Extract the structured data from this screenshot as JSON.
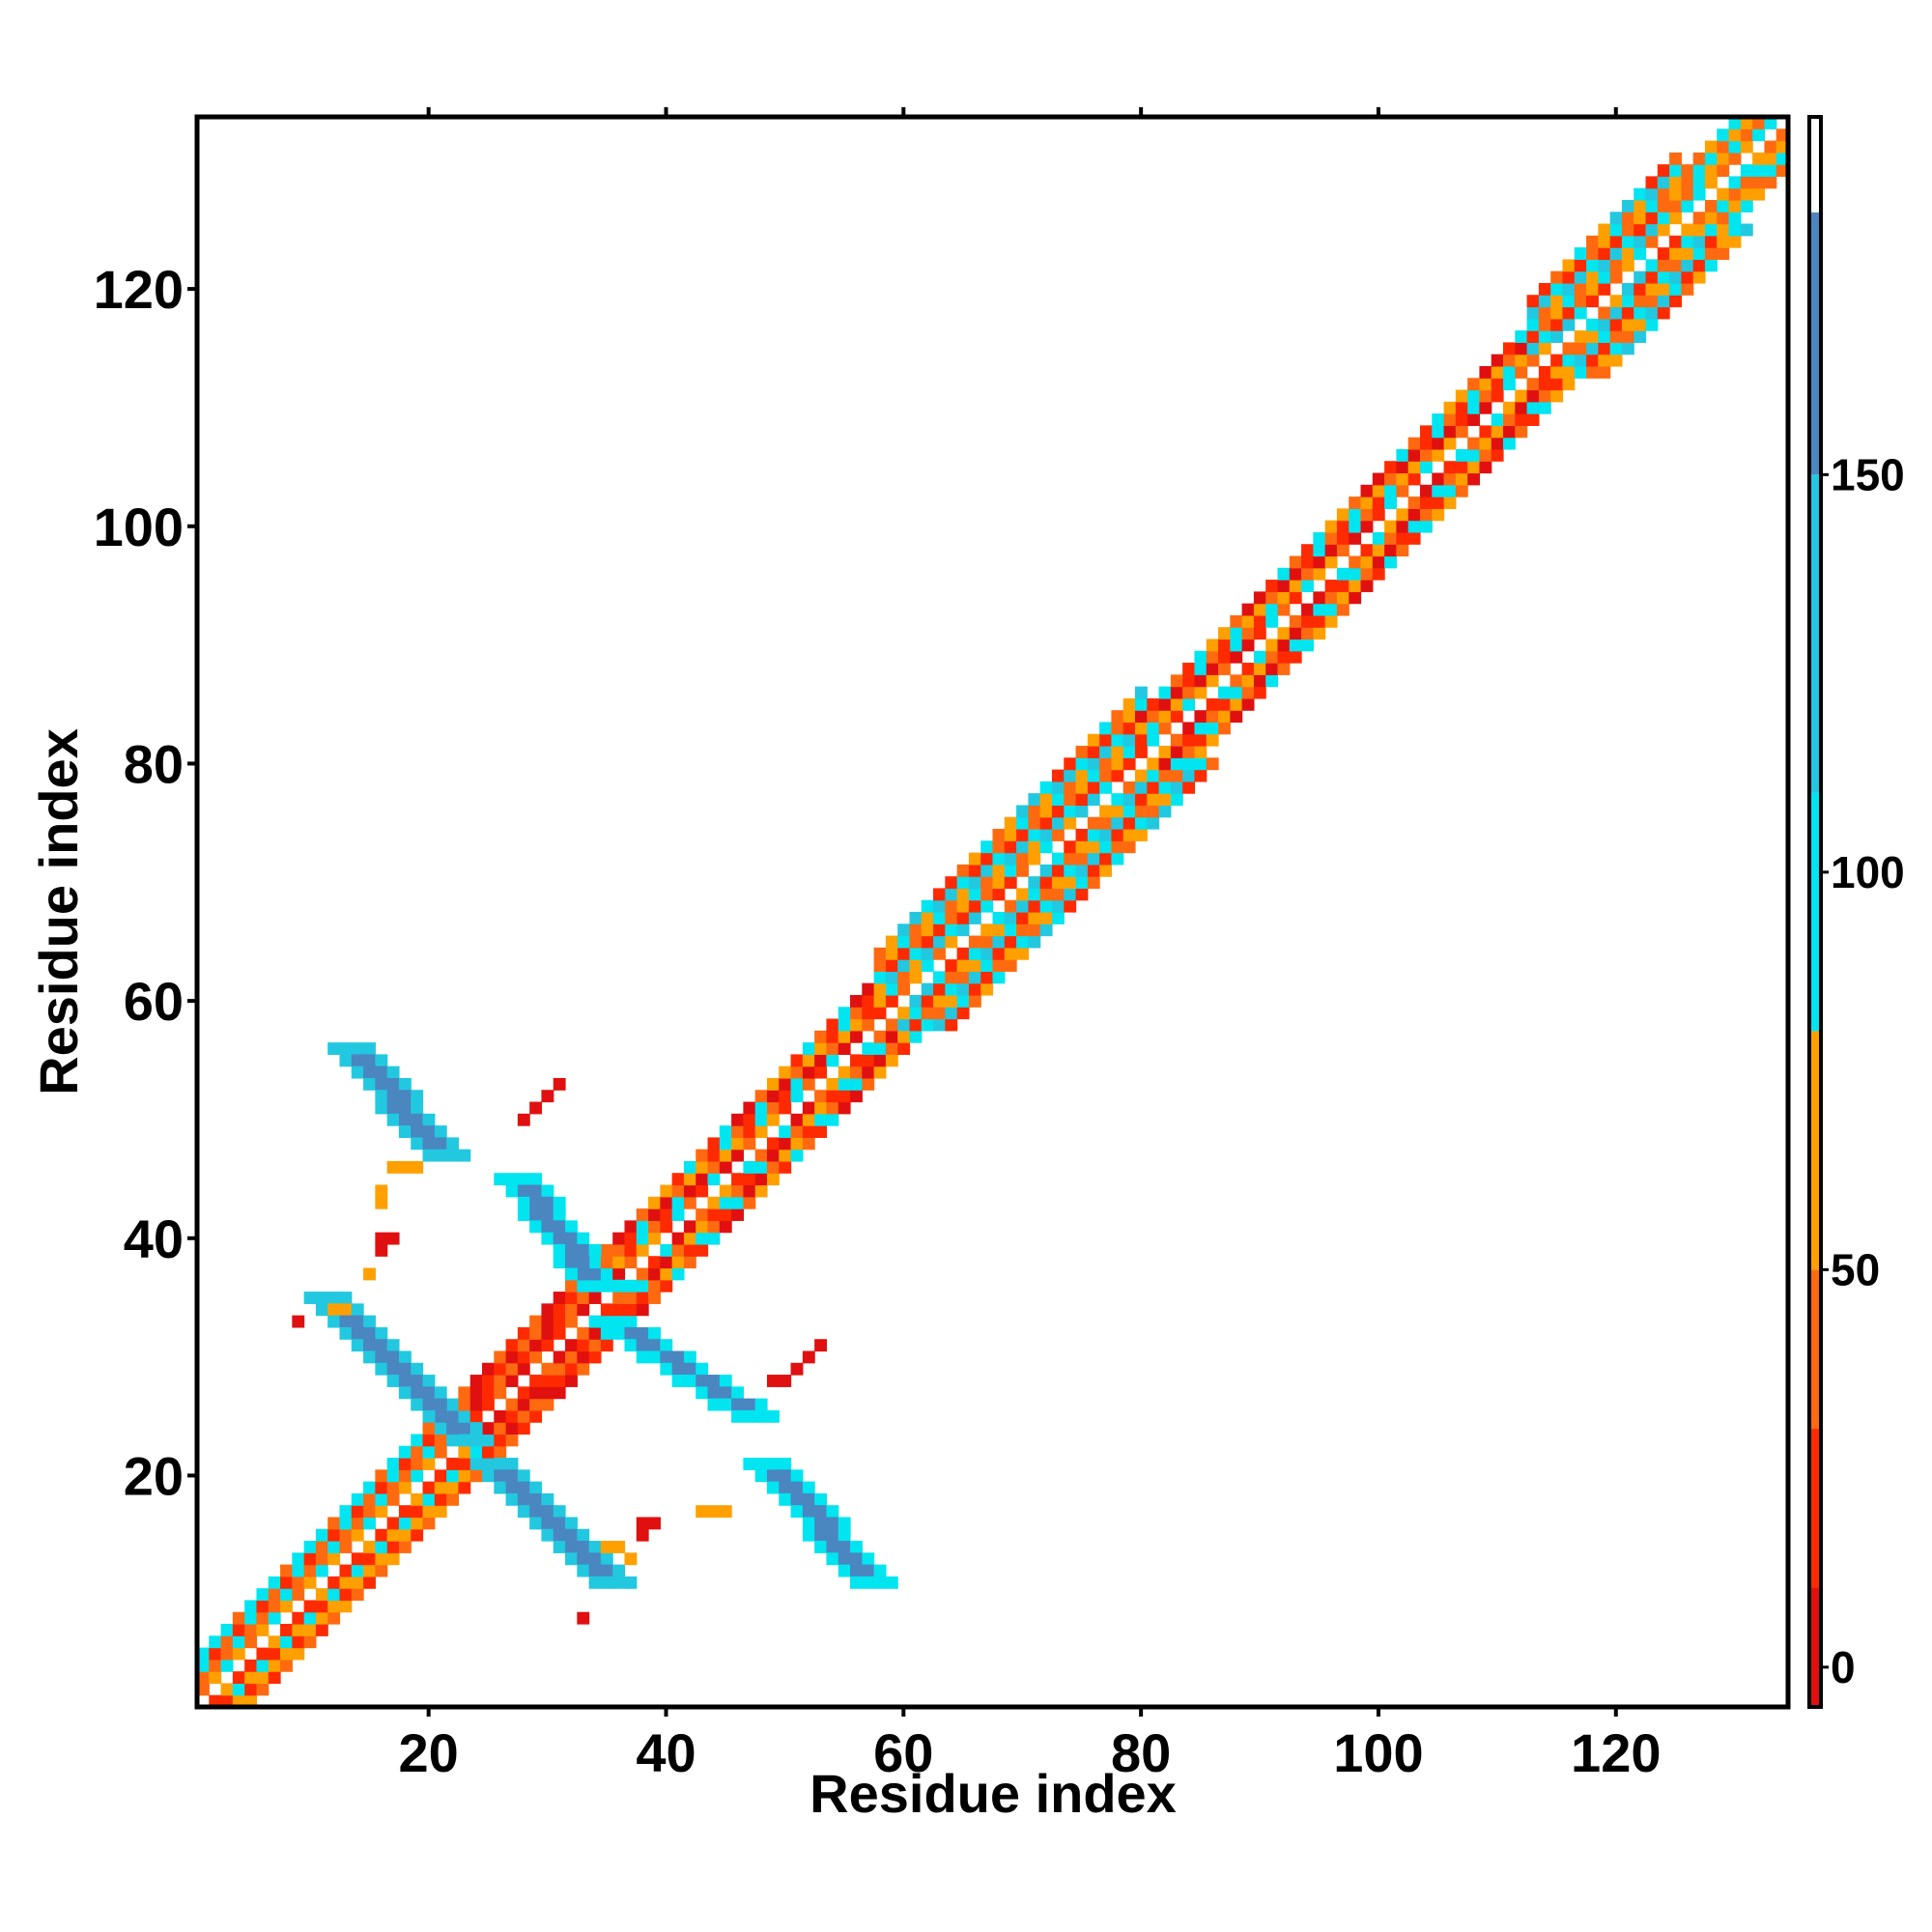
{
  "chart_data": {
    "type": "heatmap",
    "title": "",
    "xlabel": "Residue index",
    "ylabel": "Residue index",
    "xlim": [
      1,
      134
    ],
    "ylim": [
      1,
      134
    ],
    "x_ticks": [
      20,
      40,
      60,
      80,
      100,
      120
    ],
    "y_ticks": [
      20,
      40,
      60,
      80,
      100,
      120
    ],
    "grid": false,
    "colorbar": {
      "ticks": [
        0,
        50,
        100,
        150
      ],
      "range": [
        -5,
        195
      ],
      "bands": [
        {
          "from": -5,
          "to": 10,
          "color": "#e01010"
        },
        {
          "from": 10,
          "to": 30,
          "color": "#ff2a00"
        },
        {
          "from": 30,
          "to": 50,
          "color": "#ff6a10"
        },
        {
          "from": 50,
          "to": 80,
          "color": "#ffa000"
        },
        {
          "from": 80,
          "to": 110,
          "color": "#00e5f0"
        },
        {
          "from": 110,
          "to": 150,
          "color": "#22c8e0"
        },
        {
          "from": 150,
          "to": 183,
          "color": "#4a86c0"
        },
        {
          "from": 183,
          "to": 195,
          "color": "#ffffff"
        }
      ]
    },
    "regions": [
      {
        "kind": "diagonal-band",
        "from": 1,
        "to": 23,
        "width": 4,
        "palette": [
          "#ff6a10",
          "#ffa000",
          "#00e5f0",
          "#ff2a00"
        ]
      },
      {
        "kind": "diagonal-band",
        "from": 23,
        "to": 36,
        "width": 4,
        "palette": [
          "#e01010",
          "#ff2a00",
          "#ff6a10"
        ]
      },
      {
        "kind": "diagonal-band",
        "from": 36,
        "to": 58,
        "width": 4,
        "palette": [
          "#ff6a10",
          "#ff2a00",
          "#ffa000",
          "#e01010",
          "#00e5f0"
        ]
      },
      {
        "kind": "diagonal-band",
        "from": 58,
        "to": 80,
        "width": 6,
        "palette": [
          "#00e5f0",
          "#ff6a10",
          "#ff2a00",
          "#22c8e0",
          "#ffa000"
        ]
      },
      {
        "kind": "diagonal-band",
        "from": 80,
        "to": 113,
        "width": 4,
        "palette": [
          "#ff6a10",
          "#ff2a00",
          "#e01010",
          "#ffa000",
          "#00e5f0"
        ]
      },
      {
        "kind": "diagonal-band",
        "from": 113,
        "to": 125,
        "width": 6,
        "palette": [
          "#00e5f0",
          "#ff6a10",
          "#ff2a00",
          "#22c8e0",
          "#ffa000"
        ]
      },
      {
        "kind": "diagonal-band",
        "from": 125,
        "to": 134,
        "width": 4,
        "palette": [
          "#ff6a10",
          "#00e5f0",
          "#ffa000"
        ]
      },
      {
        "kind": "anti-diagonal",
        "x": [
          12,
          20
        ],
        "y": [
          56,
          47
        ],
        "width": 4,
        "color": "#4a86c0",
        "edge": "#22c8e0"
      },
      {
        "kind": "anti-diagonal",
        "x": [
          10,
          22
        ],
        "y": [
          35,
          23
        ],
        "width": 4,
        "color": "#4a86c0",
        "edge": "#22c8e0"
      },
      {
        "kind": "anti-diagonal",
        "x": [
          26,
          33
        ],
        "y": [
          45,
          36
        ],
        "width": 4,
        "color": "#4a86c0",
        "edge": "#00e5f0"
      },
      {
        "kind": "anti-diagonal",
        "x": [
          34,
          46
        ],
        "y": [
          33,
          25
        ],
        "width": 4,
        "color": "#4a86c0",
        "edge": "#00e5f0"
      },
      {
        "kind": "anti-diagonal",
        "x": [
          24,
          34
        ],
        "y": [
          21,
          11
        ],
        "width": 4,
        "color": "#4a86c0",
        "edge": "#22c8e0"
      },
      {
        "kind": "anti-diagonal",
        "x": [
          47,
          56
        ],
        "y": [
          21,
          11
        ],
        "width": 4,
        "color": "#4a86c0",
        "edge": "#00e5f0"
      },
      {
        "kind": "cells",
        "color": "#e01010",
        "points": [
          [
            28,
            50
          ],
          [
            29,
            51
          ],
          [
            30,
            52
          ],
          [
            31,
            53
          ],
          [
            16,
            40
          ],
          [
            17,
            40
          ],
          [
            16,
            39
          ],
          [
            9,
            33
          ],
          [
            33,
            8
          ],
          [
            52,
            30
          ],
          [
            51,
            29
          ],
          [
            50,
            28
          ],
          [
            49,
            28
          ],
          [
            53,
            31
          ],
          [
            38,
            16
          ],
          [
            39,
            16
          ],
          [
            38,
            15
          ]
        ]
      },
      {
        "kind": "cells",
        "color": "#ffa000",
        "points": [
          [
            17,
            46
          ],
          [
            18,
            46
          ],
          [
            19,
            46
          ],
          [
            16,
            44
          ],
          [
            16,
            43
          ],
          [
            15,
            37
          ],
          [
            12,
            34
          ],
          [
            13,
            34
          ],
          [
            35,
            14
          ],
          [
            36,
            14
          ],
          [
            37,
            13
          ],
          [
            43,
            17
          ],
          [
            44,
            17
          ],
          [
            45,
            17
          ]
        ]
      }
    ]
  }
}
